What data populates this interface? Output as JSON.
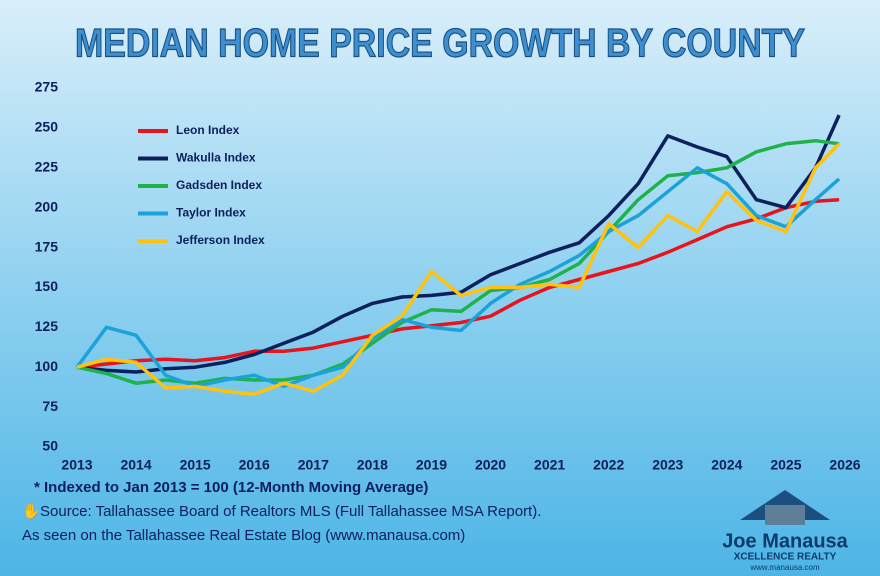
{
  "chart_data": {
    "type": "line",
    "title": "MEDIAN HOME PRICE GROWTH BY COUNTY",
    "x": [
      2013,
      2013.5,
      2014,
      2014.5,
      2015,
      2015.5,
      2016,
      2016.5,
      2017,
      2017.5,
      2018,
      2018.5,
      2019,
      2019.5,
      2020,
      2020.5,
      2021,
      2021.5,
      2022,
      2022.5,
      2023,
      2023.5,
      2024,
      2024.5,
      2025,
      2025.5,
      2025.9
    ],
    "series": [
      {
        "name": "Leon Index",
        "color": "#e8141c",
        "values": [
          100,
          102,
          104,
          105,
          104,
          106,
          110,
          110,
          112,
          116,
          120,
          124,
          126,
          128,
          132,
          142,
          150,
          155,
          160,
          165,
          172,
          180,
          188,
          193,
          200,
          204,
          205
        ]
      },
      {
        "name": "Wakulla Index",
        "color": "#0d1f5c",
        "values": [
          100,
          98,
          97,
          99,
          100,
          103,
          108,
          115,
          122,
          132,
          140,
          144,
          145,
          147,
          158,
          165,
          172,
          178,
          195,
          215,
          245,
          238,
          232,
          205,
          200,
          225,
          258
        ]
      },
      {
        "name": "Gadsden Index",
        "color": "#1fb24a",
        "values": [
          100,
          96,
          90,
          92,
          90,
          93,
          92,
          92,
          95,
          102,
          115,
          128,
          136,
          135,
          148,
          150,
          155,
          165,
          185,
          205,
          220,
          222,
          225,
          235,
          240,
          242,
          240
        ]
      },
      {
        "name": "Taylor Index",
        "color": "#1ba3d9",
        "values": [
          100,
          125,
          120,
          95,
          88,
          92,
          95,
          88,
          95,
          100,
          118,
          130,
          125,
          123,
          140,
          152,
          160,
          170,
          185,
          195,
          210,
          225,
          215,
          195,
          188,
          205,
          218
        ]
      },
      {
        "name": "Jefferson Index",
        "color": "#ffc20e",
        "values": [
          100,
          105,
          103,
          87,
          88,
          85,
          83,
          90,
          85,
          95,
          120,
          132,
          160,
          145,
          150,
          150,
          152,
          150,
          190,
          175,
          195,
          185,
          210,
          192,
          185,
          225,
          240
        ]
      }
    ],
    "xlim": [
      2013,
      2026
    ],
    "xticks": [
      2013,
      2014,
      2015,
      2016,
      2017,
      2018,
      2019,
      2020,
      2021,
      2022,
      2023,
      2024,
      2025,
      2026
    ],
    "ylim": [
      50,
      275
    ],
    "yticks": [
      50,
      75,
      100,
      125,
      150,
      175,
      200,
      225,
      250,
      275
    ],
    "notes": [
      "* Indexed to Jan 2013 = 100 (12-Month Moving Average)",
      "Source: Tallahassee Board of Realtors MLS (Full Tallahassee MSA Report).",
      "As seen on the Tallahassee Real Estate Blog (www.manausa.com)"
    ],
    "logo": {
      "name": "Joe Manausa",
      "tagline": "XCELLENCE REALTY",
      "url": "www.manausa.com"
    }
  }
}
